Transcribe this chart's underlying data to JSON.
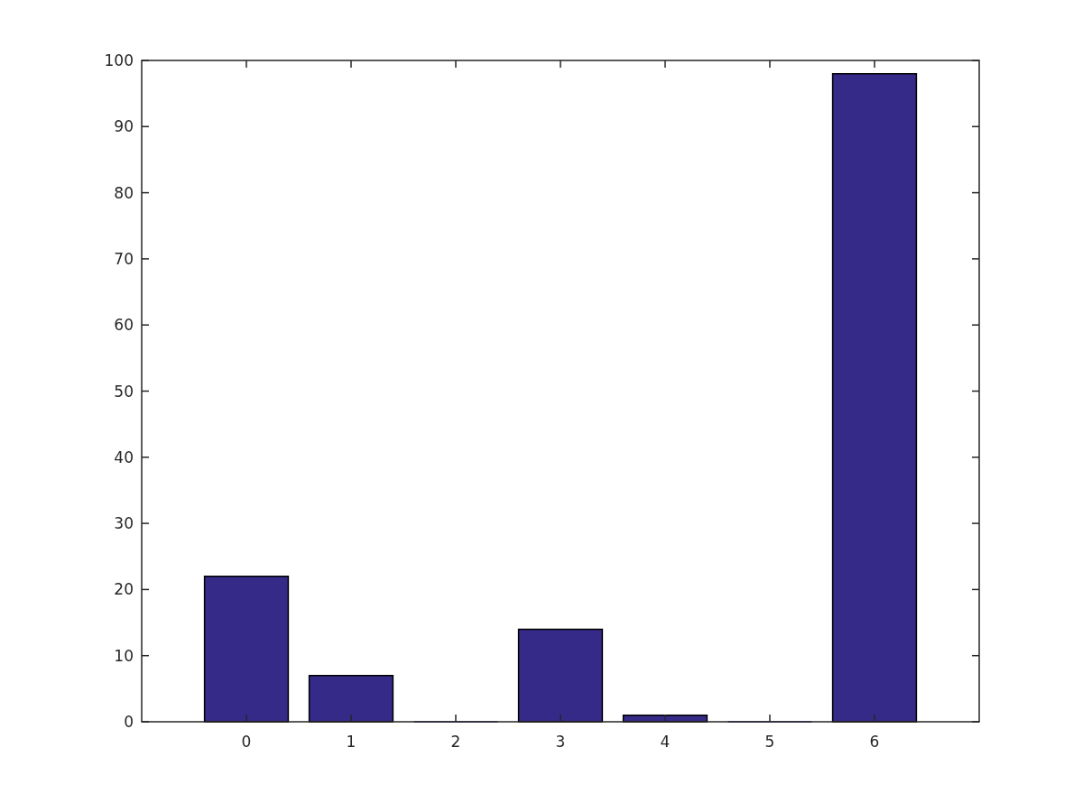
{
  "chart_data": {
    "type": "bar",
    "x": [
      0,
      1,
      2,
      3,
      4,
      5,
      6
    ],
    "values": [
      22,
      7,
      0,
      14,
      1,
      0,
      98
    ],
    "color": "#352a87",
    "xlim": [
      -1,
      7
    ],
    "xticks": [
      0,
      1,
      2,
      3,
      4,
      5,
      6
    ],
    "ylim": [
      0,
      100
    ],
    "yticks": [
      0,
      10,
      20,
      30,
      40,
      50,
      60,
      70,
      80,
      90,
      100
    ],
    "grid": false
  }
}
